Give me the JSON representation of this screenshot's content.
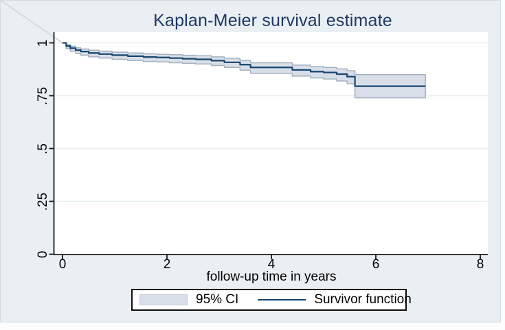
{
  "title": "Kaplan-Meier survival estimate",
  "x_axis": {
    "label": "follow-up time in years",
    "ticks": [
      0,
      2,
      4,
      6,
      8
    ],
    "tick_labels": [
      "0",
      "2",
      "4",
      "6",
      "8"
    ],
    "range": [
      0,
      8
    ]
  },
  "y_axis": {
    "ticks": [
      0,
      0.25,
      0.5,
      0.75,
      1
    ],
    "tick_labels": [
      "0",
      ".25",
      ".5",
      ".75",
      "1"
    ],
    "range": [
      0,
      1
    ]
  },
  "legend": {
    "ci_label": "95% CI",
    "line_label": "Survivor function",
    "position": "bottom-center",
    "boxed": true
  },
  "colors": {
    "graph_background": "#e9eff2",
    "plot_background": "#ffffff",
    "gridline": "#e8eff3",
    "axis": "#1a1a1a",
    "title_text": "#1f3864",
    "tick_text": "#000000",
    "ci_fill": "#d9dfe9",
    "ci_edge": "#a3b1c0",
    "survivor_line": "#17456e",
    "artifact_line": "#d6dbdd"
  },
  "chart_data": {
    "type": "line",
    "subtype": "kaplan-meier-step",
    "title": "Kaplan-Meier survival estimate",
    "xlabel": "follow-up time in years",
    "ylabel": "",
    "xlim": [
      0,
      8
    ],
    "ylim": [
      0,
      1
    ],
    "grid": "horizontal-faint",
    "legend_position": "bottom-center",
    "series": [
      {
        "name": "Survivor function",
        "style": "step-after",
        "band_name": "95% CI",
        "steps": [
          {
            "t": 0.0,
            "s": 1.0,
            "lo": 1.0,
            "hi": 1.0
          },
          {
            "t": 0.07,
            "s": 0.985,
            "lo": 0.972,
            "hi": 0.992
          },
          {
            "t": 0.15,
            "s": 0.975,
            "lo": 0.96,
            "hi": 0.984
          },
          {
            "t": 0.25,
            "s": 0.966,
            "lo": 0.95,
            "hi": 0.977
          },
          {
            "t": 0.35,
            "s": 0.959,
            "lo": 0.942,
            "hi": 0.971
          },
          {
            "t": 0.5,
            "s": 0.952,
            "lo": 0.934,
            "hi": 0.965
          },
          {
            "t": 0.7,
            "s": 0.947,
            "lo": 0.928,
            "hi": 0.961
          },
          {
            "t": 0.95,
            "s": 0.942,
            "lo": 0.922,
            "hi": 0.956
          },
          {
            "t": 1.25,
            "s": 0.937,
            "lo": 0.917,
            "hi": 0.952
          },
          {
            "t": 1.55,
            "s": 0.933,
            "lo": 0.912,
            "hi": 0.948
          },
          {
            "t": 1.8,
            "s": 0.931,
            "lo": 0.91,
            "hi": 0.946
          },
          {
            "t": 2.05,
            "s": 0.928,
            "lo": 0.906,
            "hi": 0.944
          },
          {
            "t": 2.3,
            "s": 0.925,
            "lo": 0.903,
            "hi": 0.941
          },
          {
            "t": 2.55,
            "s": 0.922,
            "lo": 0.9,
            "hi": 0.939
          },
          {
            "t": 2.85,
            "s": 0.916,
            "lo": 0.893,
            "hi": 0.934
          },
          {
            "t": 3.1,
            "s": 0.908,
            "lo": 0.884,
            "hi": 0.927
          },
          {
            "t": 3.4,
            "s": 0.897,
            "lo": 0.871,
            "hi": 0.917
          },
          {
            "t": 3.6,
            "s": 0.884,
            "lo": 0.856,
            "hi": 0.906
          },
          {
            "t": 4.4,
            "s": 0.872,
            "lo": 0.843,
            "hi": 0.895
          },
          {
            "t": 4.75,
            "s": 0.864,
            "lo": 0.834,
            "hi": 0.888
          },
          {
            "t": 5.0,
            "s": 0.86,
            "lo": 0.829,
            "hi": 0.884
          },
          {
            "t": 5.25,
            "s": 0.852,
            "lo": 0.82,
            "hi": 0.877
          },
          {
            "t": 5.45,
            "s": 0.84,
            "lo": 0.806,
            "hi": 0.868
          },
          {
            "t": 5.6,
            "s": 0.795,
            "lo": 0.74,
            "hi": 0.85
          },
          {
            "t": 6.95,
            "s": 0.795,
            "lo": 0.74,
            "hi": 0.85
          }
        ]
      }
    ]
  }
}
